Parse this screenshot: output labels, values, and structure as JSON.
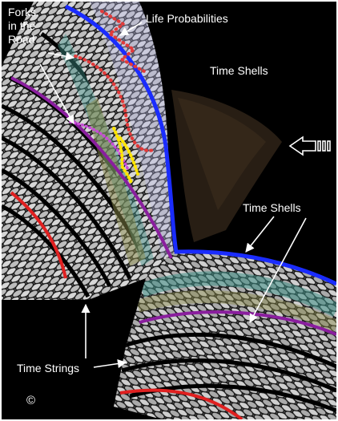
{
  "labels": {
    "forks": "Forks\nin the\nRoad",
    "life_probabilities": "Life Probabilities",
    "time_shells_top": "Time Shells",
    "time_shells_right": "Time Shells",
    "time_strings": "Time Strings",
    "copyright": "©"
  },
  "colors": {
    "background": "#000000",
    "shell_blue": "#1a2cff",
    "shell_purple": "#8a1e9e",
    "shell_red": "#e02020",
    "dots_red": "#e23a3a",
    "dots_magenta": "#c84bd8",
    "dots_yellow": "#ffe600",
    "tint_teal": "#3f8f86",
    "tint_olive": "#8a8a4a",
    "tint_lavender": "#b8b8e8",
    "tint_brown": "#7a5a3a"
  },
  "icons": {
    "incoming_arrow": "arrow-left-icon"
  }
}
